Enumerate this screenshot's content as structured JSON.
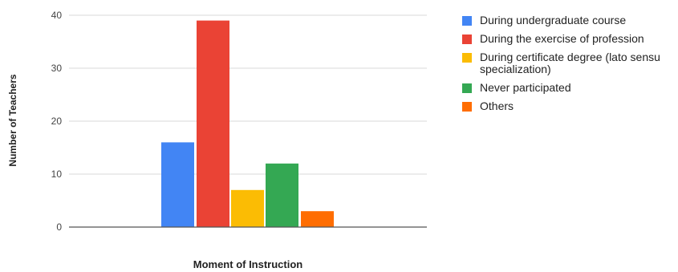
{
  "chart_data": {
    "type": "bar",
    "title": "",
    "xlabel": "Moment of Instruction",
    "ylabel": "Number of Teachers",
    "ylim": [
      0,
      40
    ],
    "yticks": [
      0,
      10,
      20,
      30,
      40
    ],
    "grid": true,
    "legend_position": "right",
    "series": [
      {
        "name": "During undergraduate course",
        "value": 16,
        "color": "#4285F4"
      },
      {
        "name": "During the exercise of profession",
        "value": 39,
        "color": "#EA4335"
      },
      {
        "name": "During certificate degree (lato sensu specialization)",
        "value": 7,
        "color": "#FBBC04"
      },
      {
        "name": "Never participated",
        "value": 12,
        "color": "#34A853"
      },
      {
        "name": "Others",
        "value": 3,
        "color": "#FF6D01"
      }
    ]
  }
}
